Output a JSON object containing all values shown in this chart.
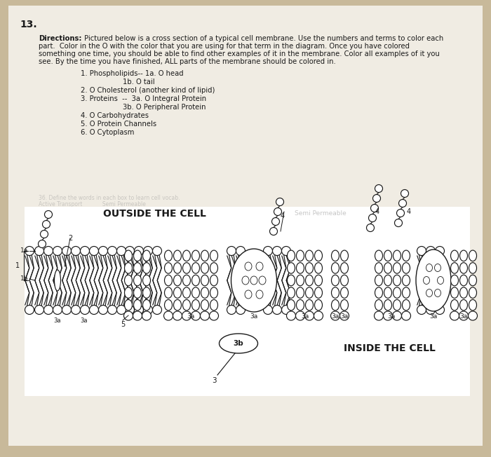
{
  "bg_color": "#c8b99a",
  "paper_color": "#f0ece3",
  "line_color": "#1a1a1a",
  "title": "13.",
  "directions_bold": "Directions:",
  "directions_text": " Pictured below is a cross section of a typical cell membrane. Use the numbers and terms to color each\npart.  Color in the O with the color that you are using for that term in the diagram. Once you have colored\nsomething one time, you should be able to find other examples of it in the membrane. Color all examples of it you\nsee. By the time you have finished, ALL parts of the membrane should be colored in.",
  "list_lines": [
    [
      "        1. Phospholipids-- 1a. O head",
      false
    ],
    [
      "                        1b. O tail",
      false
    ],
    [
      "        2. O Cholesterol (another kind of lipid)",
      false
    ],
    [
      "        3. Proteins  --  3a. O Integral Protein",
      false
    ],
    [
      "                        3b. O Peripheral Protein",
      false
    ],
    [
      "        4. O Carbohydrates",
      false
    ],
    [
      "        5. O Protein Channels",
      false
    ],
    [
      "        6. O Cytoplasm",
      false
    ]
  ],
  "outside_label": "OUTSIDE THE CELL",
  "inside_label": "INSIDE THE CELL",
  "semi_perm": "Semi Permeable"
}
